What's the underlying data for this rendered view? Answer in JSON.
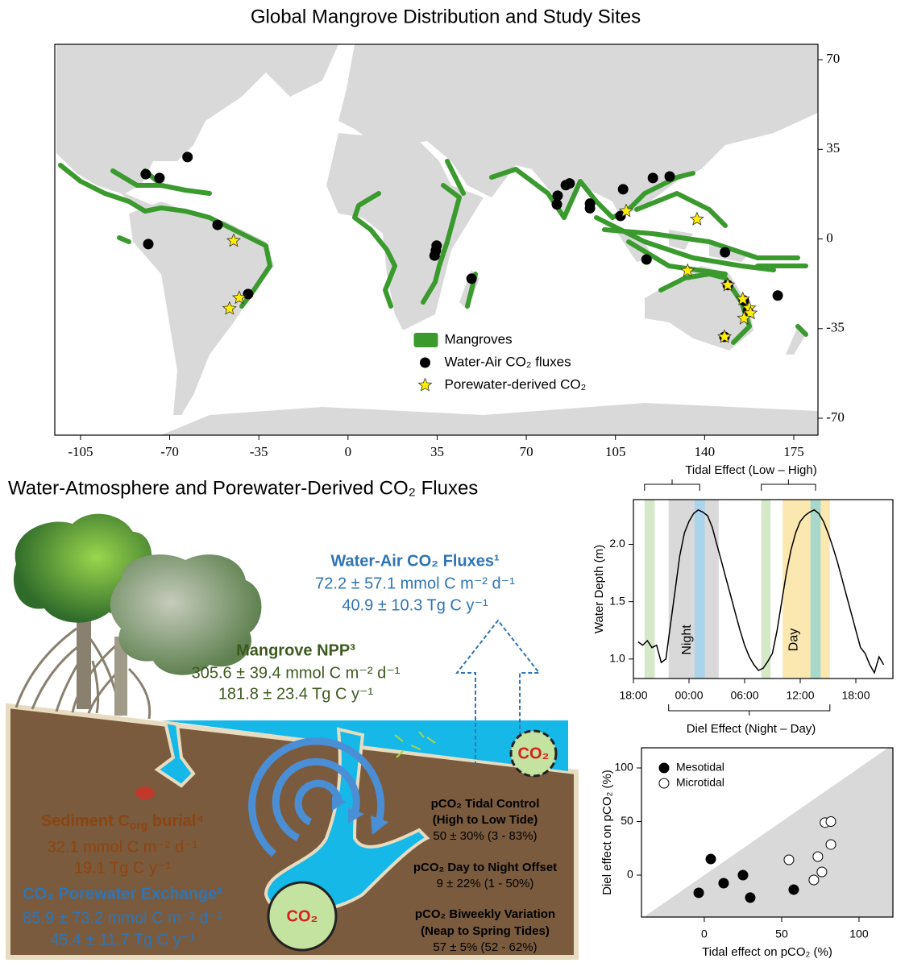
{
  "chart_data": [
    {
      "type": "scatter",
      "title": "Global Mangrove Distribution and Study Sites",
      "xlim": [
        -115.1,
        184.5
      ],
      "ylim": [
        -76.6,
        76
      ],
      "xticks": [
        -105,
        -70,
        -35,
        0,
        35,
        70,
        105,
        140,
        175
      ],
      "yticks": [
        70,
        35,
        0,
        -35,
        -70
      ],
      "y_axis_side": "right",
      "legend": "lower center",
      "area_layer": {
        "name": "Mangroves",
        "color": "#3a9a2e"
      },
      "series": [
        {
          "name": "Water-Air CO₂ fluxes",
          "color": "#000000",
          "marker": "circle",
          "x": [
            -63,
            -79.4,
            -74,
            -51.2,
            -78.4,
            -39.2,
            34.8,
            34.5,
            34,
            48.5,
            82.3,
            82,
            85.5,
            87,
            95,
            95,
            108,
            107,
            119.7,
            126.3,
            117.2,
            148,
            168.7,
            149.1,
            155.4,
            157,
            147.8
          ],
          "y": [
            32,
            25.3,
            23.8,
            5.5,
            -2,
            -21.5,
            -2.6,
            -4.5,
            -6.5,
            -15.5,
            16.9,
            13.5,
            21,
            21.7,
            12,
            13.8,
            19.4,
            9,
            23.8,
            24.4,
            -8,
            -5.2,
            -22.1,
            -18,
            -24,
            -28,
            -38.2
          ]
        },
        {
          "name": "Porewater-derived CO₂",
          "color": "#ffee00",
          "marker": "star",
          "x": [
            -44.9,
            -42.7,
            -46.5,
            109.2,
            137,
            133.3,
            149.1,
            155,
            157.5,
            158,
            155.5,
            147.8
          ],
          "y": [
            -0.7,
            -23,
            -27.2,
            10.9,
            7.7,
            -12.4,
            -18,
            -23.5,
            -27,
            -29,
            -31,
            -38.2
          ]
        }
      ]
    },
    {
      "type": "line",
      "ylabel": "Water Depth (m)",
      "xlim": [
        18,
        46
      ],
      "ylim": [
        0.83,
        2.39
      ],
      "xticks": [
        {
          "value": 18,
          "label": "18:00"
        },
        {
          "value": 24,
          "label": "00:00"
        },
        {
          "value": 30,
          "label": "06:00"
        },
        {
          "value": 36,
          "label": "12:00"
        },
        {
          "value": 42,
          "label": "18:00"
        }
      ],
      "yticks": [
        {
          "value": 1,
          "label": "1.0"
        },
        1.5,
        {
          "value": 2,
          "label": "2.0"
        }
      ],
      "x": [
        18.5,
        19,
        19.5,
        20,
        20.5,
        21,
        21.5,
        22,
        22.5,
        23,
        23.5,
        24,
        24.5,
        25,
        25.5,
        26,
        26.5,
        27,
        27.5,
        28,
        28.5,
        29,
        29.5,
        30,
        30.5,
        31,
        31.5,
        32,
        32.5,
        33,
        33.5,
        34,
        34.5,
        35,
        35.5,
        36,
        36.5,
        37,
        37.5,
        38,
        38.5,
        39,
        39.5,
        40,
        40.5,
        41,
        41.5,
        42,
        42.5,
        43,
        43.5,
        44,
        44.5,
        45
      ],
      "series": [
        {
          "color": "#000000",
          "values": [
            1.15,
            1.12,
            1.16,
            1.1,
            1.12,
            0.97,
            1.0,
            1.3,
            1.6,
            1.9,
            2.1,
            2.2,
            2.27,
            2.3,
            2.28,
            2.25,
            2.15,
            2.0,
            1.85,
            1.7,
            1.55,
            1.4,
            1.25,
            1.12,
            1.02,
            0.95,
            0.9,
            0.92,
            0.98,
            1.05,
            1.25,
            1.5,
            1.75,
            1.95,
            2.1,
            2.2,
            2.25,
            2.28,
            2.3,
            2.27,
            2.2,
            2.1,
            1.98,
            1.85,
            1.7,
            1.55,
            1.4,
            1.25,
            1.1,
            1.05,
            0.95,
            0.88,
            1.02,
            0.95
          ]
        }
      ],
      "bands": [
        {
          "x": [
            19.2,
            20.3
          ],
          "color": "#d5e8c8"
        },
        {
          "x": [
            21.8,
            27.2
          ],
          "color": "#d9d9d9"
        },
        {
          "x": [
            24.6,
            25.7
          ],
          "color": "#a9d4ec"
        },
        {
          "x": [
            31.8,
            32.8
          ],
          "color": "#d5e8c8"
        },
        {
          "x": [
            34.1,
            39.2
          ],
          "color": "#fbe7b0"
        },
        {
          "x": [
            37.1,
            38.2
          ],
          "color": "#a8d8cc"
        }
      ],
      "annotations": {
        "tidal": "Tidal Effect (Low – High)",
        "diel": "Diel Effect (Night – Day)",
        "night": "Night",
        "day": "Day"
      }
    },
    {
      "type": "scatter",
      "xlabel": "Tidal effect on pCO₂ (%)",
      "ylabel": "Diel effect on pCO₂ (%)",
      "xlim": [
        -40.6,
        121.9
      ],
      "ylim": [
        -39.1,
        118.8
      ],
      "xticks": [
        0,
        50,
        100
      ],
      "yticks": [
        0,
        50,
        100
      ],
      "y_axis_side": "left",
      "legend": "upper left",
      "diagonal_fill": "#d9d9d9",
      "series": [
        {
          "name": "Mesotidal",
          "color": "#000000",
          "marker": "circle",
          "x": [
            -3.6,
            4.2,
            12.5,
            25,
            29.7,
            57.8
          ],
          "y": [
            -16.5,
            15,
            -7.5,
            0,
            -21,
            -13.5
          ]
        },
        {
          "name": "Microtidal",
          "color": "#ffffff",
          "marker": "circle",
          "x": [
            54.7,
            73.4,
            76,
            70.8,
            78,
            81.8,
            81.8
          ],
          "y": [
            14.3,
            17.3,
            3,
            -4.5,
            49,
            50,
            28.6
          ]
        }
      ]
    }
  ],
  "diagram": {
    "title": "Water-Atmosphere and Porewater-Derived CO₂ Fluxes",
    "water_air": {
      "title": "Water-Air CO₂ Fluxes¹",
      "lines": [
        "72.2 ± 57.1 mmol C m⁻² d⁻¹",
        "40.9 ± 10.3 Tg C y⁻¹"
      ]
    },
    "npp": {
      "title": "Mangrove NPP³",
      "lines": [
        "305.6 ± 39.4 mmol C m⁻² d⁻¹",
        "181.8 ±  23.4 Tg C y⁻¹"
      ]
    },
    "burial": {
      "title": [
        "Sediment C",
        "org",
        " burial⁴"
      ],
      "lines": [
        "32.1 mmol C m⁻² d⁻¹",
        "19.1 Tg C y⁻¹"
      ]
    },
    "porewater": {
      "title": "CO₂ Porewater Exchange²",
      "lines": [
        "85.9 ± 73.2 mmol C m⁻² d⁻¹",
        "45.4 ± 11.7 Tg C y⁻¹"
      ]
    },
    "controls": [
      {
        "title": "pCO₂ Tidal Control",
        "subtitle": "(High to Low Tide)",
        "value": "50 ± 30% (3 - 83%)"
      },
      {
        "title": "pCO₂ Day to Night Offset",
        "value": "9 ± 22% (1 - 50%)"
      },
      {
        "title": "pCO₂ Biweekly Variation",
        "subtitle": "(Neap to Spring Tides)",
        "value": "57 ± 5% (52 - 62%)"
      }
    ],
    "co2_labels": [
      "CO₂",
      "CO₂"
    ]
  }
}
